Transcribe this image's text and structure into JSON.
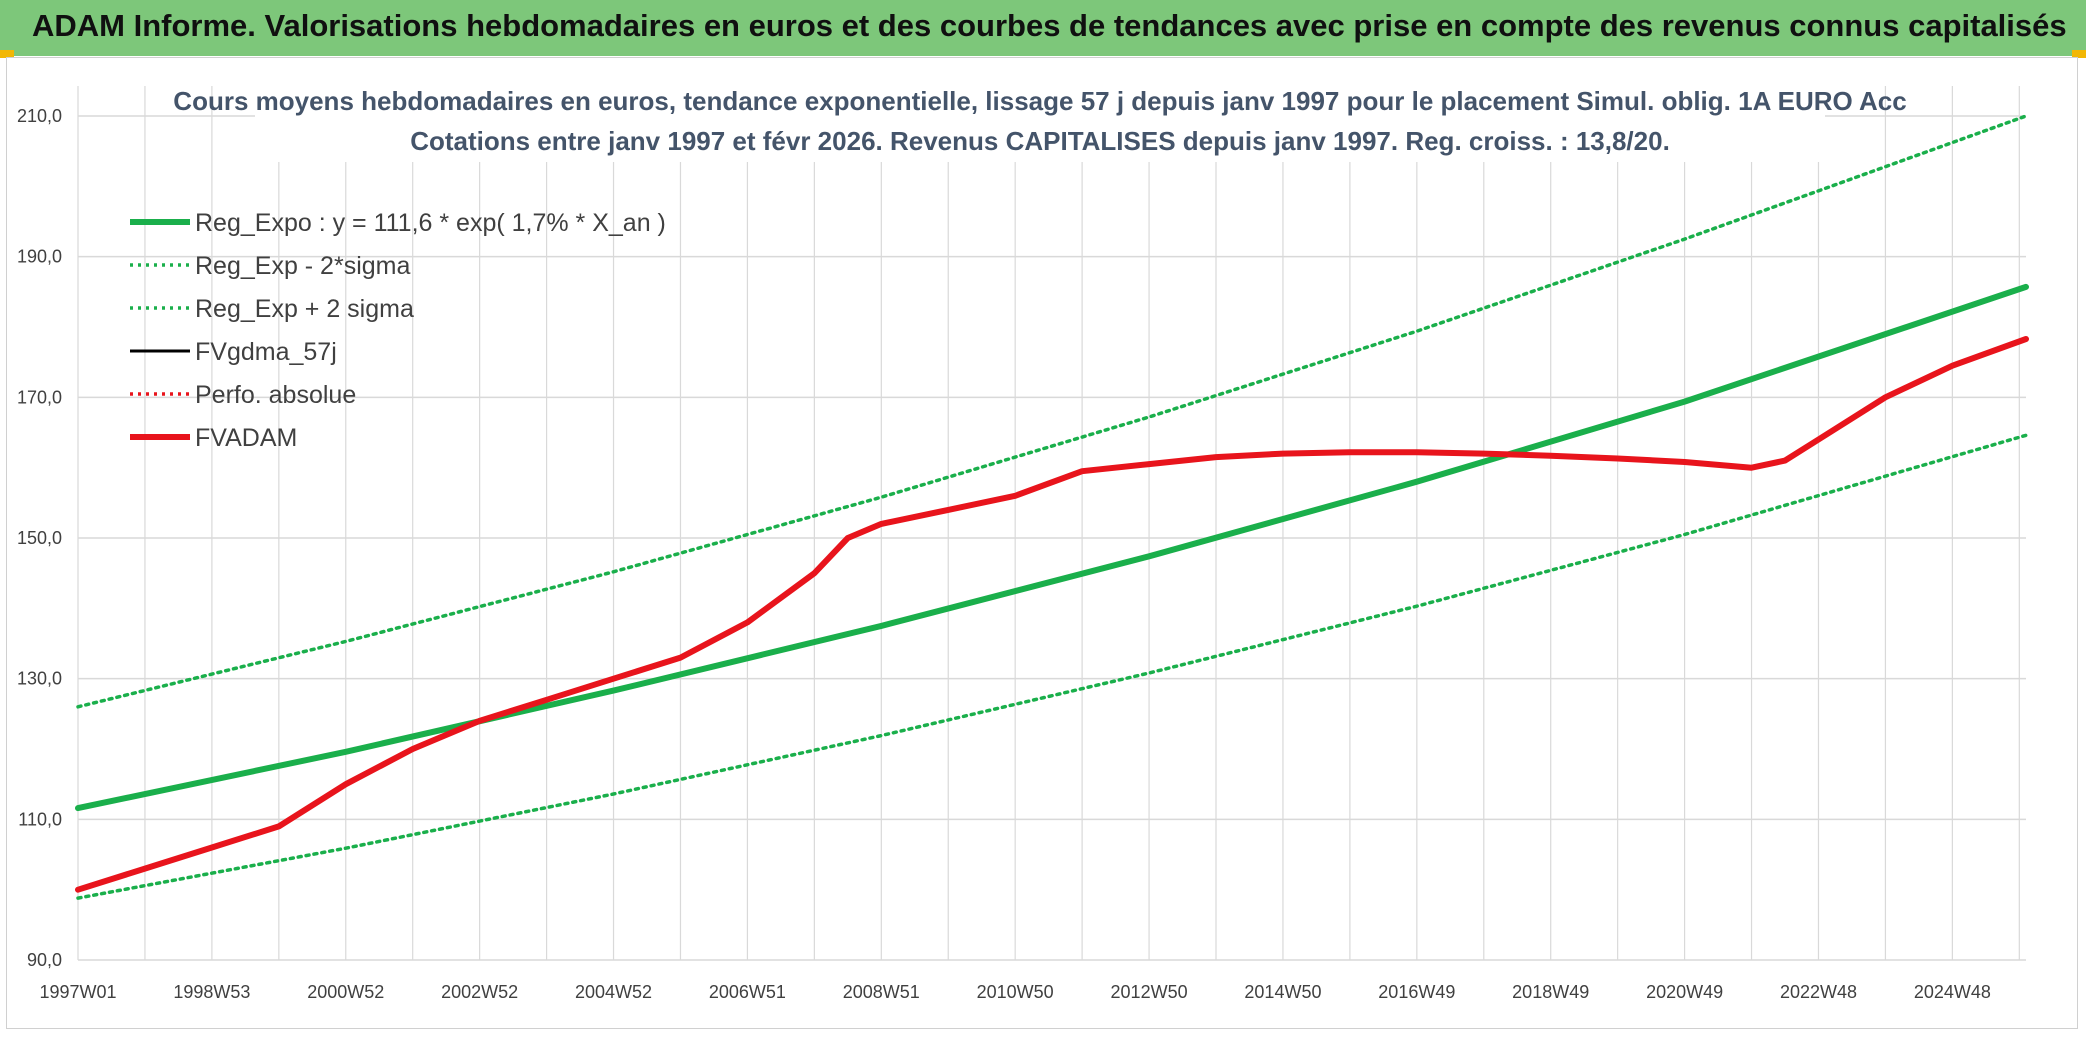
{
  "header": {
    "banner": "ADAM Informe. Valorisations hebdomadaires en euros et des courbes de tendances avec prise en compte des revenus connus capitalisés"
  },
  "colors": {
    "banner_bg": "#7dc77a",
    "trend_green": "#1aaf4b",
    "adam_red": "#e8141c",
    "grid": "#d9d9d9",
    "title": "#44546a"
  },
  "chart_data": {
    "type": "line",
    "title": "Cours moyens hebdomadaires en euros, tendance exponentielle, lissage 57 j depuis janv 1997 pour le placement Simul. oblig. 1A EURO Acc",
    "subtitle": "Cotations entre janv 1997 et févr 2026. Revenus CAPITALISES depuis janv 1997. Reg. croiss. : 13,8/20.",
    "xlabel": "",
    "ylabel": "",
    "x_range": [
      1997.0,
      2026.1
    ],
    "ylim": [
      90,
      210
    ],
    "yticks": [
      "90,0",
      "110,0",
      "130,0",
      "150,0",
      "170,0",
      "190,0",
      "210,0"
    ],
    "ytick_values": [
      90,
      110,
      130,
      150,
      170,
      190,
      210
    ],
    "xticks": [
      "1997W01",
      "1998W53",
      "2000W52",
      "2002W52",
      "2004W52",
      "2006W51",
      "2008W51",
      "2010W50",
      "2012W50",
      "2014W50",
      "2016W49",
      "2018W49",
      "2020W49",
      "2022W48",
      "2024W48"
    ],
    "xtick_values": [
      1997,
      1999,
      2001,
      2003,
      2005,
      2007,
      2009,
      2011,
      2013,
      2015,
      2017,
      2019,
      2021,
      2023,
      2025
    ],
    "grid": true,
    "legend_position": "top-left",
    "series": [
      {
        "name": "Reg_Expo : y = 111,6 * exp( 1,7% *  X_an )",
        "style": "solid-thick",
        "color": "#1aaf4b",
        "x": [
          1997,
          2001,
          2005,
          2009,
          2013,
          2017,
          2021,
          2026.1
        ],
        "values": [
          111.6,
          119.6,
          128.3,
          137.5,
          147.4,
          158.0,
          169.4,
          185.7
        ]
      },
      {
        "name": "Reg_Exp - 2*sigma",
        "style": "dotted",
        "color": "#1aaf4b",
        "x": [
          1997,
          2001,
          2005,
          2009,
          2013,
          2017,
          2021,
          2026.1
        ],
        "values": [
          98.8,
          105.9,
          113.6,
          121.9,
          130.8,
          140.3,
          150.5,
          164.6
        ]
      },
      {
        "name": "Reg_Exp + 2 sigma",
        "style": "dotted",
        "color": "#1aaf4b",
        "x": [
          1997,
          2001,
          2005,
          2009,
          2013,
          2017,
          2021,
          2026.1
        ],
        "values": [
          126.0,
          135.3,
          145.2,
          155.8,
          167.2,
          179.4,
          192.5,
          210.0
        ]
      },
      {
        "name": "FVgdma_57j",
        "style": "solid",
        "color": "#000000",
        "x": [],
        "values": []
      },
      {
        "name": "Perfo. absolue",
        "style": "dotted",
        "color": "#e8141c",
        "x": [],
        "values": []
      },
      {
        "name": "FVADAM",
        "style": "solid-thick",
        "color": "#e8141c",
        "x": [
          1997.0,
          1998.0,
          1999.0,
          2000.0,
          2001.0,
          2002.0,
          2003.0,
          2004.0,
          2005.0,
          2006.0,
          2007.0,
          2008.0,
          2008.5,
          2009.0,
          2010.0,
          2011.0,
          2012.0,
          2013.0,
          2014.0,
          2015.0,
          2016.0,
          2017.0,
          2018.0,
          2019.0,
          2020.0,
          2021.0,
          2022.0,
          2022.5,
          2023.0,
          2024.0,
          2025.0,
          2026.1
        ],
        "values": [
          100.0,
          103.0,
          106.0,
          109.0,
          115.0,
          120.0,
          124.0,
          127.0,
          130.0,
          133.0,
          138.0,
          145.0,
          150.0,
          152.0,
          154.0,
          156.0,
          159.5,
          160.5,
          161.5,
          162.0,
          162.2,
          162.2,
          162.0,
          161.7,
          161.3,
          160.8,
          160.0,
          161.0,
          164.0,
          170.0,
          174.5,
          178.3
        ]
      }
    ]
  }
}
